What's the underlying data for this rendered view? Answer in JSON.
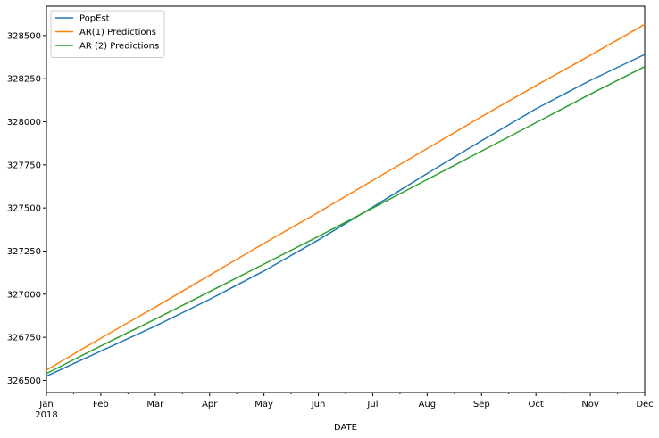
{
  "chart_data": {
    "type": "line",
    "title": "",
    "xlabel": "DATE",
    "ylabel": "",
    "categories": [
      "Jan",
      "Feb",
      "Mar",
      "Apr",
      "May",
      "Jun",
      "Jul",
      "Aug",
      "Sep",
      "Oct",
      "Nov",
      "Dec"
    ],
    "x_year_label": "2018",
    "ylim": [
      326430,
      328670
    ],
    "yticks": [
      326500,
      326750,
      327000,
      327250,
      327500,
      327750,
      328000,
      328250,
      328500
    ],
    "grid": false,
    "legend_position": "top-left",
    "series": [
      {
        "name": "PopEst",
        "color": "#1f77b4",
        "values": [
          326525,
          326670,
          326815,
          326970,
          327135,
          327315,
          327505,
          327700,
          327890,
          328075,
          328240,
          328390
        ]
      },
      {
        "name": "AR(1) Predictions",
        "color": "#ff7f0e",
        "values": [
          326560,
          326745,
          326925,
          327110,
          327295,
          327475,
          327660,
          327845,
          328030,
          328210,
          328385,
          328565
        ]
      },
      {
        "name": "AR (2) Predictions",
        "color": "#2ca02c",
        "values": [
          326540,
          326700,
          326855,
          327015,
          327175,
          327335,
          327500,
          327665,
          327830,
          327995,
          328160,
          328320
        ]
      }
    ]
  }
}
